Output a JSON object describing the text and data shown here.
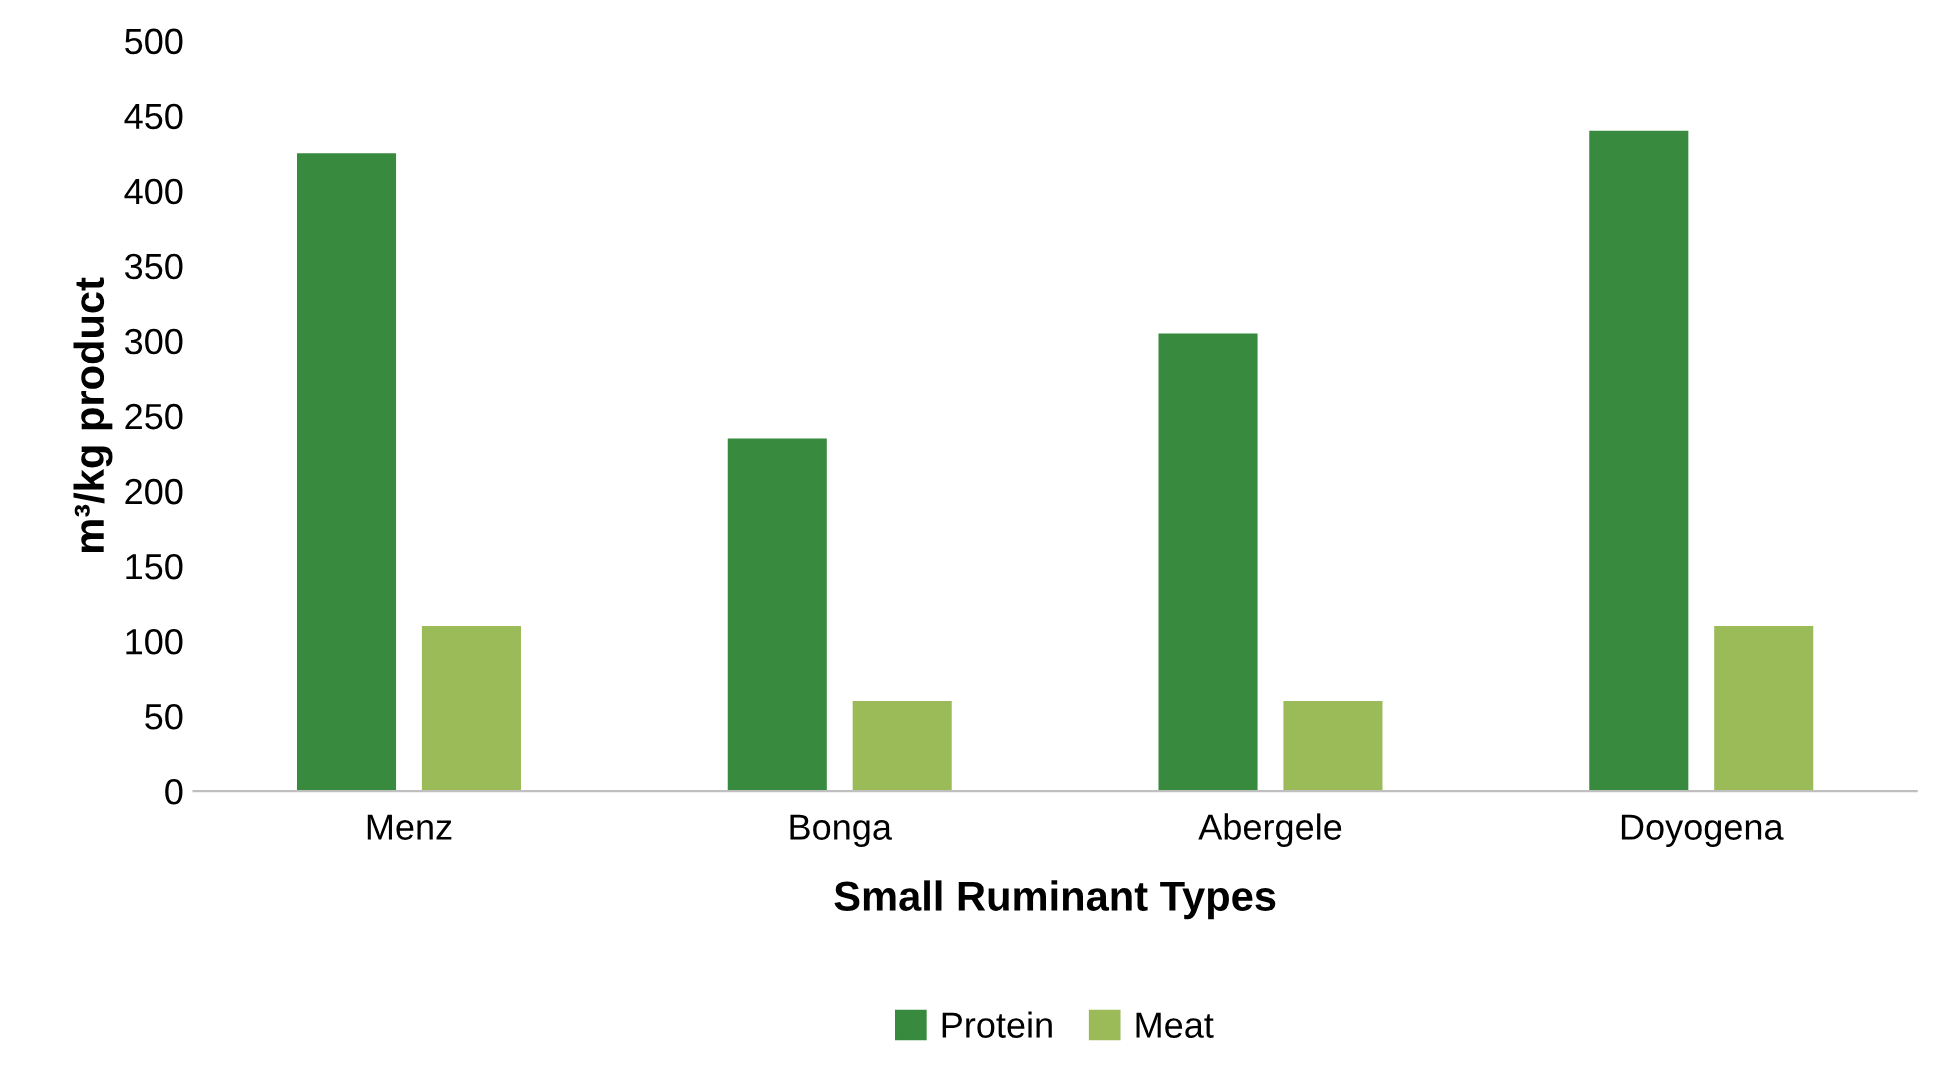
{
  "chart_data": {
    "type": "bar",
    "xlabel": "Small Ruminant Types",
    "ylabel": "m³/kg product",
    "categories": [
      "Menz",
      "Bonga",
      "Abergele",
      "Doyogena"
    ],
    "series": [
      {
        "name": "Protein",
        "color": "#378a3e",
        "values": [
          425,
          235,
          305,
          440
        ]
      },
      {
        "name": "Meat",
        "color": "#9bbb59",
        "values": [
          110,
          60,
          60,
          110
        ]
      }
    ],
    "ylim": [
      0,
      500
    ],
    "yticks": [
      0,
      50,
      100,
      150,
      200,
      250,
      300,
      350,
      400,
      450,
      500
    ],
    "grid": false,
    "legend": "bottom"
  }
}
